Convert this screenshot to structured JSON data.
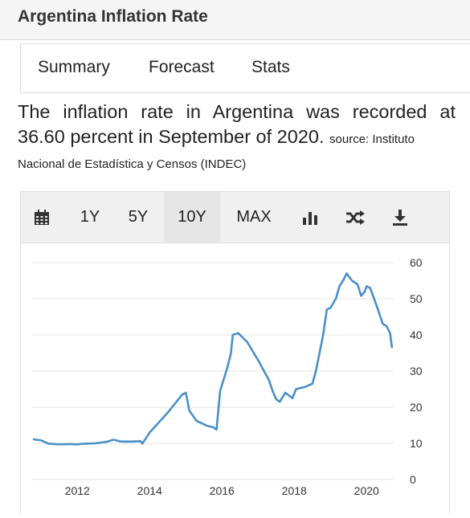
{
  "header": {
    "title": "Argentina Inflation Rate"
  },
  "tabs": [
    {
      "label": "Summary"
    },
    {
      "label": "Forecast"
    },
    {
      "label": "Stats"
    }
  ],
  "summary": {
    "line1": "The inflation rate in Argentina was recorded at",
    "line2": "36.60 percent in September of 2020.",
    "source_inline": "source: Instituto",
    "source_line2": "Nacional de Estadística y Censos (INDEC)"
  },
  "toolbar": {
    "icons": [
      "calendar-icon",
      "bar-chart-icon",
      "shuffle-icon",
      "download-icon"
    ],
    "ranges": [
      {
        "label": "1Y",
        "active": false
      },
      {
        "label": "5Y",
        "active": false
      },
      {
        "label": "10Y",
        "active": true
      },
      {
        "label": "MAX",
        "active": false
      }
    ]
  },
  "chart_data": {
    "type": "line",
    "title": "",
    "xlabel": "",
    "ylabel": "",
    "xlim": [
      2010.75,
      2020.75
    ],
    "ylim": [
      0,
      60
    ],
    "x_ticks": [
      "2012",
      "2014",
      "2016",
      "2018",
      "2020"
    ],
    "y_ticks": [
      "0",
      "10",
      "20",
      "30",
      "40",
      "50",
      "60"
    ],
    "y_axis_position": "right",
    "grid": "horizontal",
    "color": "#4a90c8",
    "series": [
      {
        "values": [
          [
            2010.8,
            11.1
          ],
          [
            2011.0,
            10.8
          ],
          [
            2011.2,
            9.9
          ],
          [
            2011.5,
            9.7
          ],
          [
            2011.8,
            9.8
          ],
          [
            2012.0,
            9.7
          ],
          [
            2012.2,
            9.9
          ],
          [
            2012.5,
            10.0
          ],
          [
            2012.8,
            10.4
          ],
          [
            2013.0,
            11.0
          ],
          [
            2013.2,
            10.5
          ],
          [
            2013.5,
            10.5
          ],
          [
            2013.75,
            10.6
          ],
          [
            2013.8,
            9.9
          ],
          [
            2014.0,
            13.0
          ],
          [
            2014.5,
            18.5
          ],
          [
            2014.9,
            23.5
          ],
          [
            2015.0,
            24.0
          ],
          [
            2015.1,
            19.0
          ],
          [
            2015.3,
            16.2
          ],
          [
            2015.6,
            14.8
          ],
          [
            2015.75,
            14.5
          ],
          [
            2015.85,
            13.8
          ],
          [
            2015.95,
            24.5
          ],
          [
            2016.15,
            31.0
          ],
          [
            2016.25,
            35.0
          ],
          [
            2016.3,
            40.0
          ],
          [
            2016.45,
            40.5
          ],
          [
            2016.7,
            38.0
          ],
          [
            2017.0,
            33.0
          ],
          [
            2017.3,
            27.5
          ],
          [
            2017.4,
            24.5
          ],
          [
            2017.5,
            22.2
          ],
          [
            2017.6,
            21.5
          ],
          [
            2017.75,
            24.0
          ],
          [
            2017.95,
            22.5
          ],
          [
            2018.05,
            25.0
          ],
          [
            2018.3,
            25.6
          ],
          [
            2018.5,
            26.5
          ],
          [
            2018.6,
            30.0
          ],
          [
            2018.8,
            40.0
          ],
          [
            2018.9,
            47.0
          ],
          [
            2019.0,
            47.5
          ],
          [
            2019.15,
            50.0
          ],
          [
            2019.25,
            53.5
          ],
          [
            2019.35,
            55.0
          ],
          [
            2019.45,
            57.0
          ],
          [
            2019.6,
            55.0
          ],
          [
            2019.75,
            54.0
          ],
          [
            2019.85,
            50.8
          ],
          [
            2019.95,
            52.0
          ],
          [
            2020.0,
            53.5
          ],
          [
            2020.1,
            53.0
          ],
          [
            2020.3,
            47.5
          ],
          [
            2020.45,
            43.0
          ],
          [
            2020.55,
            42.5
          ],
          [
            2020.65,
            40.5
          ],
          [
            2020.7,
            36.6
          ]
        ]
      }
    ]
  }
}
